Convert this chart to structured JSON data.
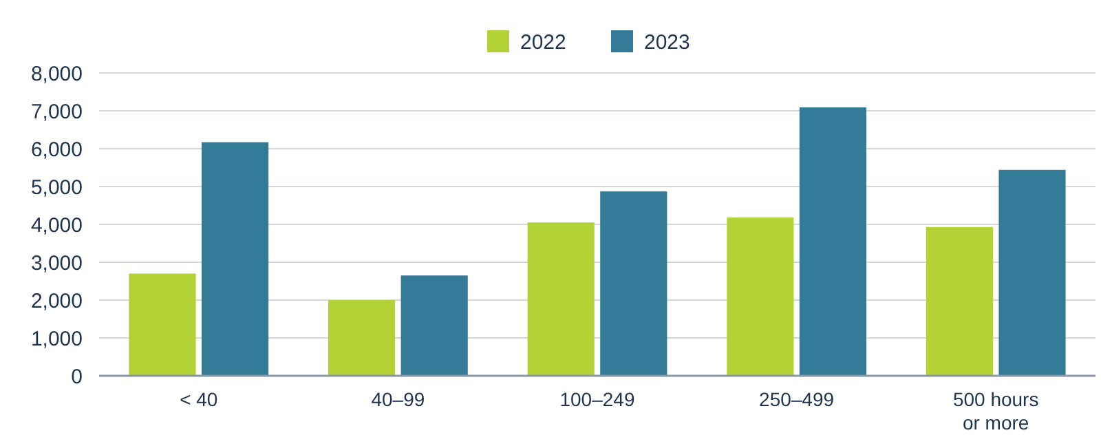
{
  "chart_data": {
    "type": "bar",
    "categories": [
      "< 40",
      "40–99",
      "100–249",
      "250–499",
      "500 hours or more"
    ],
    "series": [
      {
        "name": "2022",
        "color": "#b2d235",
        "values": [
          2700,
          2000,
          4050,
          4180,
          3930
        ]
      },
      {
        "name": "2023",
        "color": "#337a96",
        "values": [
          6170,
          2650,
          4870,
          7090,
          5440
        ]
      }
    ],
    "ylim": [
      0,
      8000
    ],
    "yticks": [
      {
        "value": 0,
        "label": "0"
      },
      {
        "value": 1000,
        "label": "1,000"
      },
      {
        "value": 2000,
        "label": "2,000"
      },
      {
        "value": 3000,
        "label": "3,000"
      },
      {
        "value": 4000,
        "label": "4,000"
      },
      {
        "value": 5000,
        "label": "5,000"
      },
      {
        "value": 6000,
        "label": "6,000"
      },
      {
        "value": 7000,
        "label": "7,000"
      },
      {
        "value": 8000,
        "label": "8,000"
      }
    ],
    "grid": "y",
    "legend": "top"
  }
}
